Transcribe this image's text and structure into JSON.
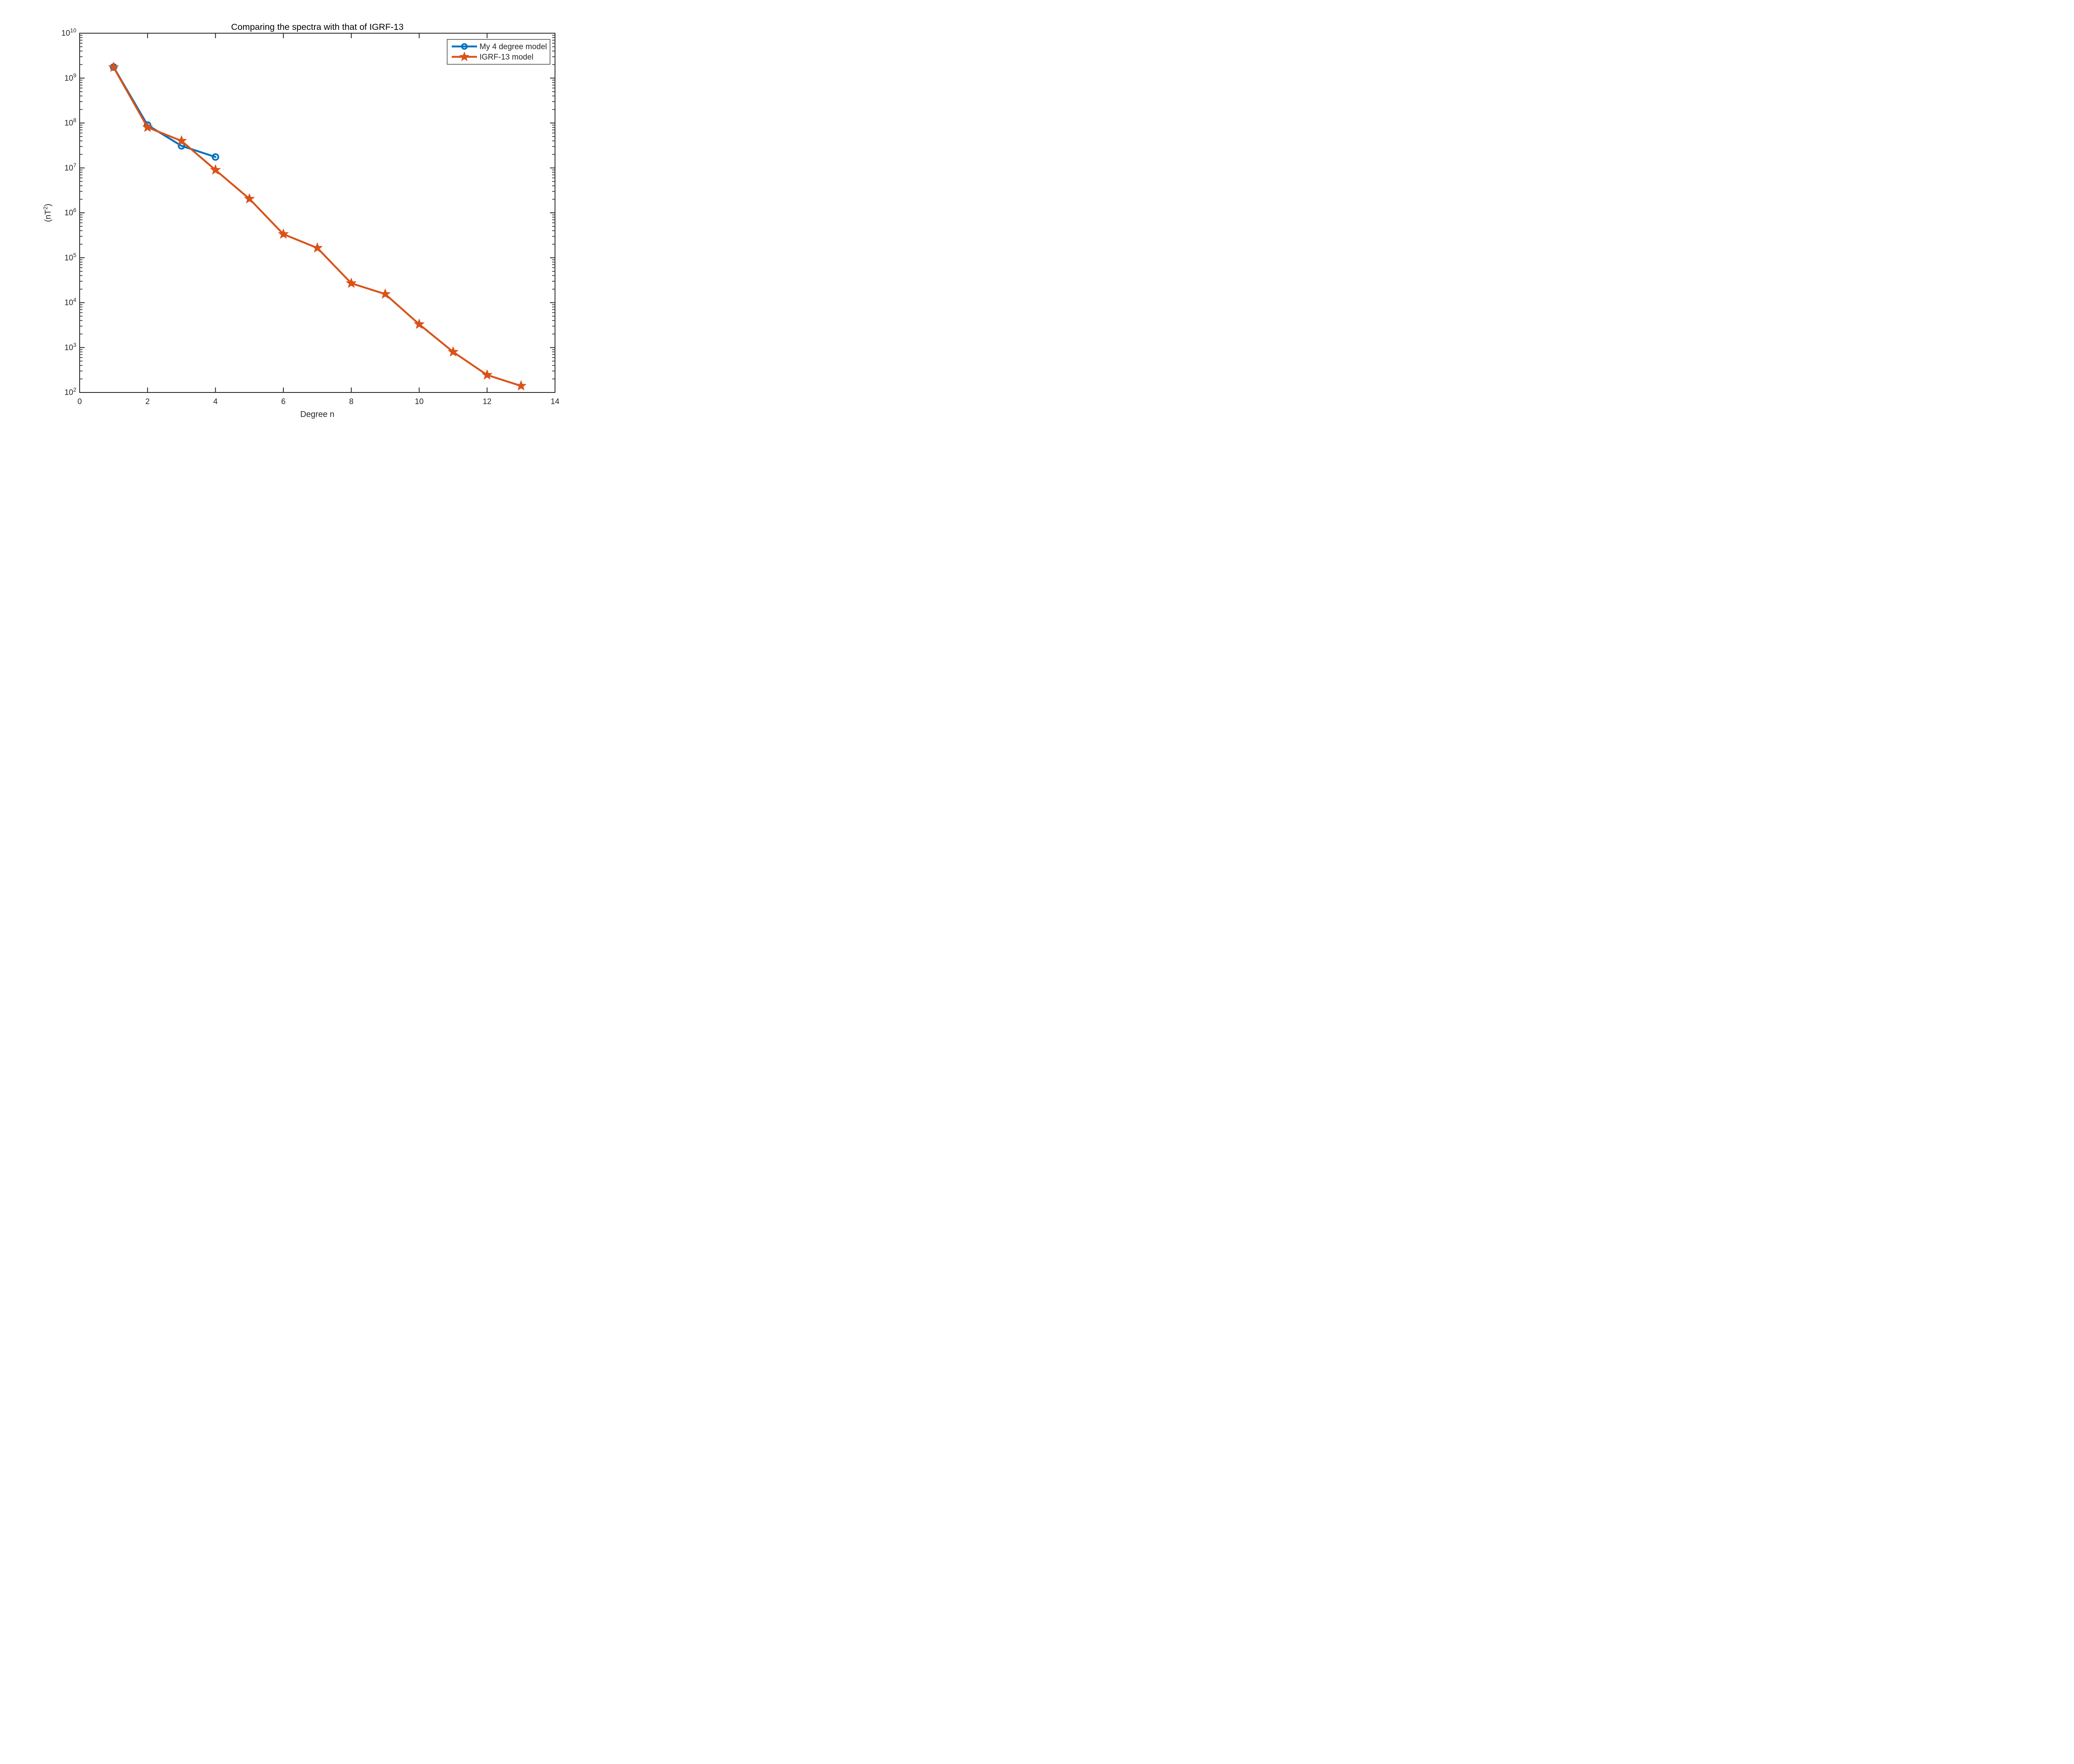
{
  "chart_data": {
    "type": "line",
    "title": "Comparing the spectra with that of IGRF-13",
    "xlabel": "Degree n",
    "ylabel_pre": "(nT",
    "ylabel_sup": "2",
    "ylabel_post": ")",
    "xlim": [
      0,
      14
    ],
    "xticks": [
      0,
      2,
      4,
      6,
      8,
      10,
      12,
      14
    ],
    "ylog_exponent_range": [
      2,
      10
    ],
    "yscale": "log",
    "grid": false,
    "legend_position": "northeast",
    "axis_color": "#262626",
    "background_color": "#ffffff",
    "series": [
      {
        "name": "My 4 degree model",
        "color": "#0072BD",
        "marker": "circle",
        "x": [
          1,
          2,
          3,
          4
        ],
        "values": [
          1760000000,
          90000000,
          31000000,
          17500000
        ]
      },
      {
        "name": "IGRF-13 model",
        "color": "#D95319",
        "marker": "pentagram",
        "x": [
          1,
          2,
          3,
          4,
          5,
          6,
          7,
          8,
          9,
          10,
          11,
          12,
          13
        ],
        "values": [
          1740000000,
          80000000,
          40000000,
          9000000,
          2050000,
          335000,
          165000,
          27000,
          15500,
          3300,
          800,
          245,
          140
        ]
      }
    ]
  }
}
